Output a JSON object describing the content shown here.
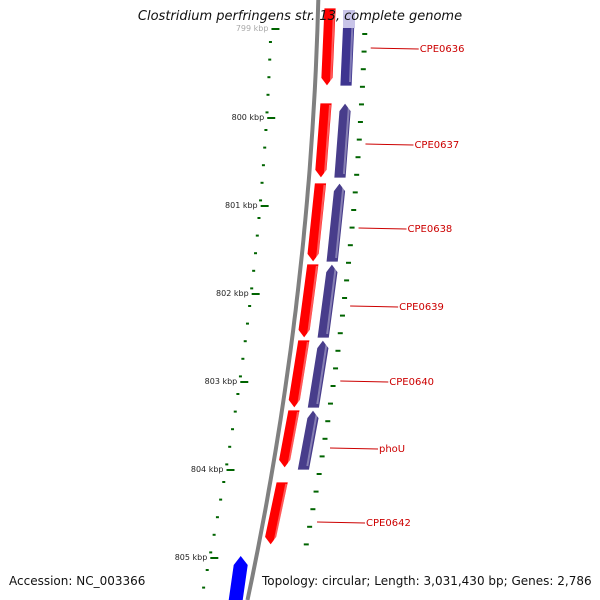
{
  "title": "Clostridium perfringens str. 13, complete genome",
  "accession_text": "Accession: NC_003366",
  "summary_text": "Topology: circular; Length: 3,031,430 bp; Genes: 2,786",
  "colors": {
    "backbone": "#808080",
    "forward_cds": "#ff0000",
    "reverse_cds": "#483d8b",
    "other_feature": "#0000ff",
    "tick": "#006400",
    "label": "#cc0000"
  },
  "scale": {
    "unit": "kbp",
    "major_ticks": [
      "799 kbp",
      "800 kbp",
      "801 kbp",
      "802 kbp",
      "803 kbp",
      "804 kbp",
      "805 kbp"
    ]
  },
  "genes": [
    {
      "label": "CPE0636"
    },
    {
      "label": "CPE0637"
    },
    {
      "label": "CPE0638"
    },
    {
      "label": "CPE0639"
    },
    {
      "label": "CPE0640"
    },
    {
      "label": "phoU"
    },
    {
      "label": "CPE0642"
    }
  ]
}
